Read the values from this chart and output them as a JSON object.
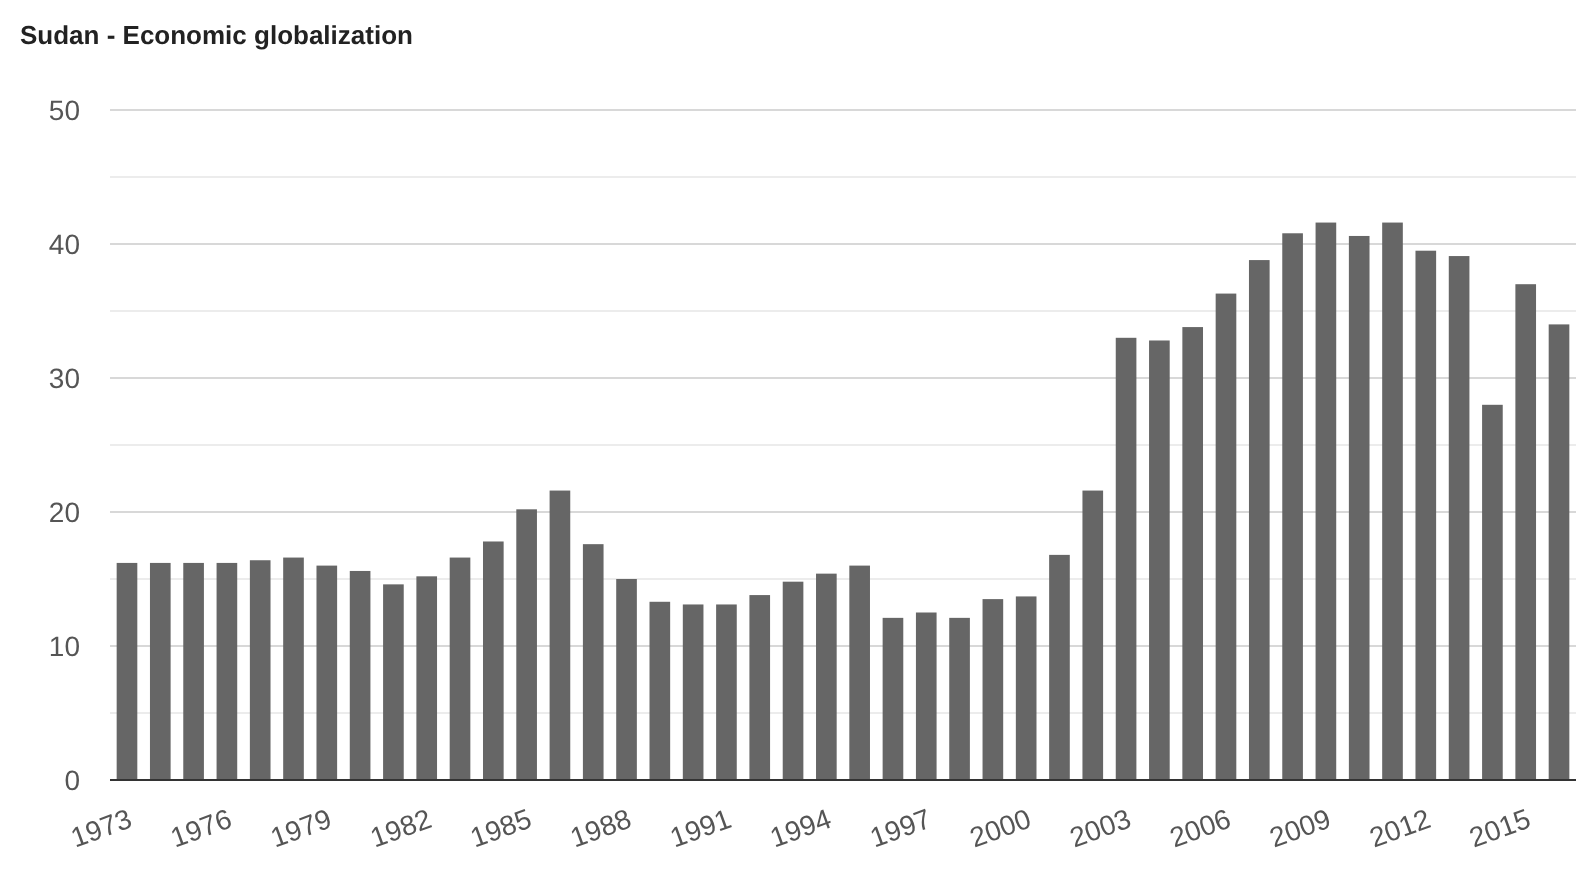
{
  "chart_data": {
    "type": "bar",
    "title": "Sudan - Economic globalization",
    "categories": [
      "1973",
      null,
      null,
      "1976",
      null,
      null,
      "1979",
      null,
      null,
      "1982",
      null,
      null,
      "1985",
      null,
      null,
      "1988",
      null,
      null,
      "1991",
      null,
      null,
      "1994",
      null,
      null,
      "1997",
      null,
      null,
      "2000",
      null,
      null,
      "2003",
      null,
      null,
      "2006",
      null,
      null,
      "2009",
      null,
      null,
      "2012",
      null,
      null,
      "2015",
      null
    ],
    "values": [
      16.2,
      16.2,
      16.2,
      16.2,
      16.4,
      16.6,
      16.0,
      15.6,
      14.6,
      15.2,
      16.6,
      17.8,
      20.2,
      21.6,
      17.6,
      15.0,
      13.3,
      13.1,
      13.1,
      13.8,
      14.8,
      15.4,
      16.0,
      12.1,
      12.5,
      12.1,
      13.5,
      13.7,
      16.8,
      21.6,
      33.0,
      32.8,
      33.8,
      36.3,
      38.8,
      40.8,
      41.6,
      40.6,
      41.6,
      39.5,
      39.1,
      28.0,
      37.0,
      34.0
    ],
    "color": "#666666",
    "ylim": [
      0,
      50
    ],
    "yticks": [
      0,
      {
        "value": 5,
        "label": null
      },
      10,
      {
        "value": 15,
        "label": null
      },
      20,
      {
        "value": 25,
        "label": null
      },
      30,
      {
        "value": 35,
        "label": null
      },
      40,
      {
        "value": 45,
        "label": null
      },
      50
    ],
    "grid": "y"
  }
}
